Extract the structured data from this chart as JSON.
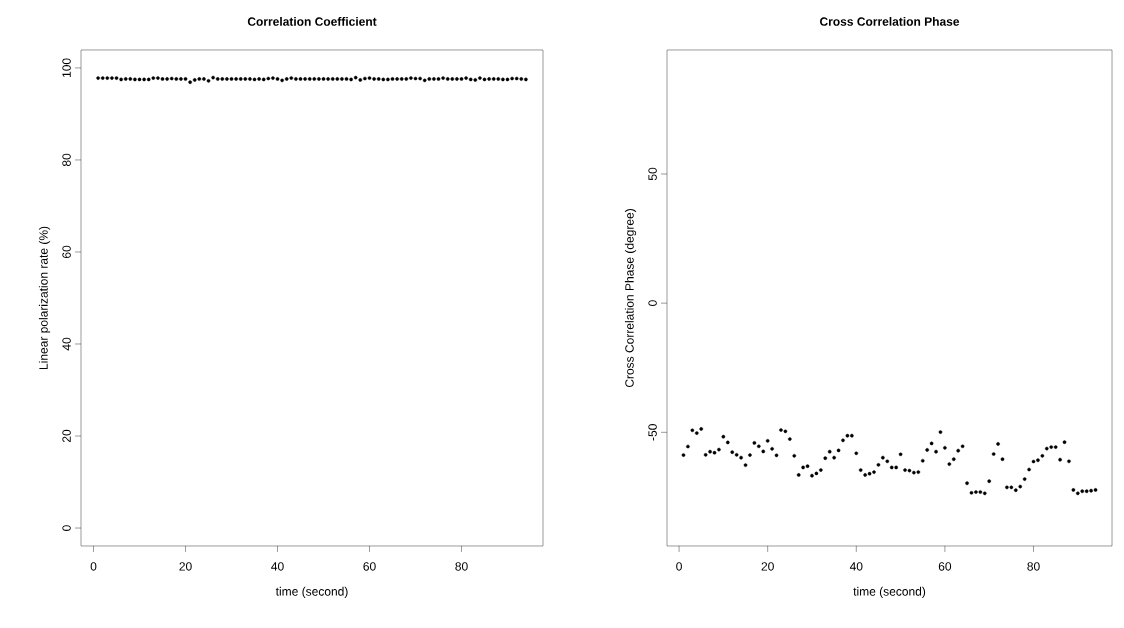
{
  "chart_data": [
    {
      "type": "scatter",
      "title": "Correlation Coefficient",
      "xlabel": "time (second)",
      "ylabel": "Linear polarization rate (%)",
      "marker": "circle",
      "color": "#000000",
      "x": [
        1,
        2,
        3,
        4,
        5,
        6,
        7,
        8,
        9,
        10,
        11,
        12,
        13,
        14,
        15,
        16,
        17,
        18,
        19,
        20,
        21,
        22,
        23,
        24,
        25,
        26,
        27,
        28,
        29,
        30,
        31,
        32,
        33,
        34,
        35,
        36,
        37,
        38,
        39,
        40,
        41,
        42,
        43,
        44,
        45,
        46,
        47,
        48,
        49,
        50,
        51,
        52,
        53,
        54,
        55,
        56,
        57,
        58,
        59,
        60,
        61,
        62,
        63,
        64,
        65,
        66,
        67,
        68,
        69,
        70,
        71,
        72,
        73,
        74,
        75,
        76,
        77,
        78,
        79,
        80,
        81,
        82,
        83,
        84,
        85,
        86,
        87,
        88,
        89,
        90,
        91,
        92,
        93,
        94
      ],
      "values": [
        97.8,
        97.8,
        97.8,
        97.8,
        97.8,
        97.5,
        97.6,
        97.6,
        97.5,
        97.5,
        97.5,
        97.5,
        97.8,
        97.8,
        97.6,
        97.6,
        97.7,
        97.6,
        97.6,
        97.6,
        96.9,
        97.4,
        97.6,
        97.6,
        97.2,
        97.9,
        97.6,
        97.6,
        97.6,
        97.6,
        97.6,
        97.6,
        97.6,
        97.6,
        97.5,
        97.6,
        97.5,
        97.7,
        97.8,
        97.6,
        97.3,
        97.6,
        97.8,
        97.6,
        97.6,
        97.6,
        97.6,
        97.6,
        97.6,
        97.6,
        97.6,
        97.6,
        97.6,
        97.6,
        97.6,
        97.5,
        97.9,
        97.4,
        97.7,
        97.8,
        97.6,
        97.6,
        97.5,
        97.5,
        97.6,
        97.6,
        97.6,
        97.6,
        97.8,
        97.7,
        97.7,
        97.3,
        97.6,
        97.6,
        97.6,
        97.8,
        97.6,
        97.6,
        97.6,
        97.6,
        97.8,
        97.5,
        97.4,
        97.8,
        97.5,
        97.6,
        97.6,
        97.6,
        97.5,
        97.5,
        97.7,
        97.7,
        97.6,
        97.5
      ],
      "xlim": [
        -2.72,
        97.72
      ],
      "ylim": [
        -3.9,
        103.9
      ],
      "xticks": [
        0,
        20,
        40,
        60,
        80
      ],
      "yticks": [
        0,
        20,
        40,
        60,
        80,
        100
      ],
      "grid": false
    },
    {
      "type": "scatter",
      "title": "Cross Correlation Phase",
      "xlabel": "time (second)",
      "ylabel": "Cross Correlation Phase (degree)",
      "marker": "circle",
      "color": "#000000",
      "x": [
        1,
        2,
        3,
        4,
        5,
        6,
        7,
        8,
        9,
        10,
        11,
        12,
        13,
        14,
        15,
        16,
        17,
        18,
        19,
        20,
        21,
        22,
        23,
        24,
        25,
        26,
        27,
        28,
        29,
        30,
        31,
        32,
        33,
        34,
        35,
        36,
        37,
        38,
        39,
        40,
        41,
        42,
        43,
        44,
        45,
        46,
        47,
        48,
        49,
        50,
        51,
        52,
        53,
        54,
        55,
        56,
        57,
        58,
        59,
        60,
        61,
        62,
        63,
        64,
        65,
        66,
        67,
        68,
        69,
        70,
        71,
        72,
        73,
        74,
        75,
        76,
        77,
        78,
        79,
        80,
        81,
        82,
        83,
        84,
        85,
        86,
        87,
        88,
        89,
        90,
        91,
        92,
        93,
        94
      ],
      "values": [
        -58.8,
        -55.5,
        -49.2,
        -50.3,
        -48.7,
        -58.7,
        -57.5,
        -57.9,
        -56.7,
        -51.7,
        -53.9,
        -57.7,
        -58.7,
        -59.8,
        -62.7,
        -58.8,
        -54.1,
        -55.4,
        -57.4,
        -53.3,
        -56.4,
        -58.9,
        -49.1,
        -49.6,
        -52.6,
        -59.1,
        -66.5,
        -63.6,
        -63.1,
        -66.8,
        -65.9,
        -64.6,
        -60.0,
        -57.5,
        -59.8,
        -57.0,
        -53.1,
        -51.3,
        -51.3,
        -58.1,
        -64.6,
        -66.5,
        -66.0,
        -65.4,
        -62.6,
        -59.8,
        -61.2,
        -63.6,
        -63.6,
        -58.5,
        -64.6,
        -64.8,
        -65.6,
        -65.4,
        -61.0,
        -56.8,
        -54.3,
        -57.5,
        -49.9,
        -56.0,
        -62.3,
        -60.4,
        -57.1,
        -55.4,
        -69.7,
        -73.4,
        -73.1,
        -73.1,
        -73.6,
        -68.9,
        -58.4,
        -54.5,
        -60.4,
        -71.3,
        -71.3,
        -72.4,
        -71.0,
        -68.1,
        -64.4,
        -61.3,
        -60.8,
        -59.1,
        -56.3,
        -55.7,
        -55.7,
        -60.6,
        -53.8,
        -61.2,
        -72.3,
        -73.6,
        -72.8,
        -72.8,
        -72.6,
        -72.3
      ],
      "xlim": [
        -2.72,
        97.72
      ],
      "ylim": [
        -94,
        98
      ],
      "xticks": [
        0,
        20,
        40,
        60,
        80
      ],
      "yticks": [
        -50,
        0,
        50
      ],
      "grid": false
    }
  ]
}
